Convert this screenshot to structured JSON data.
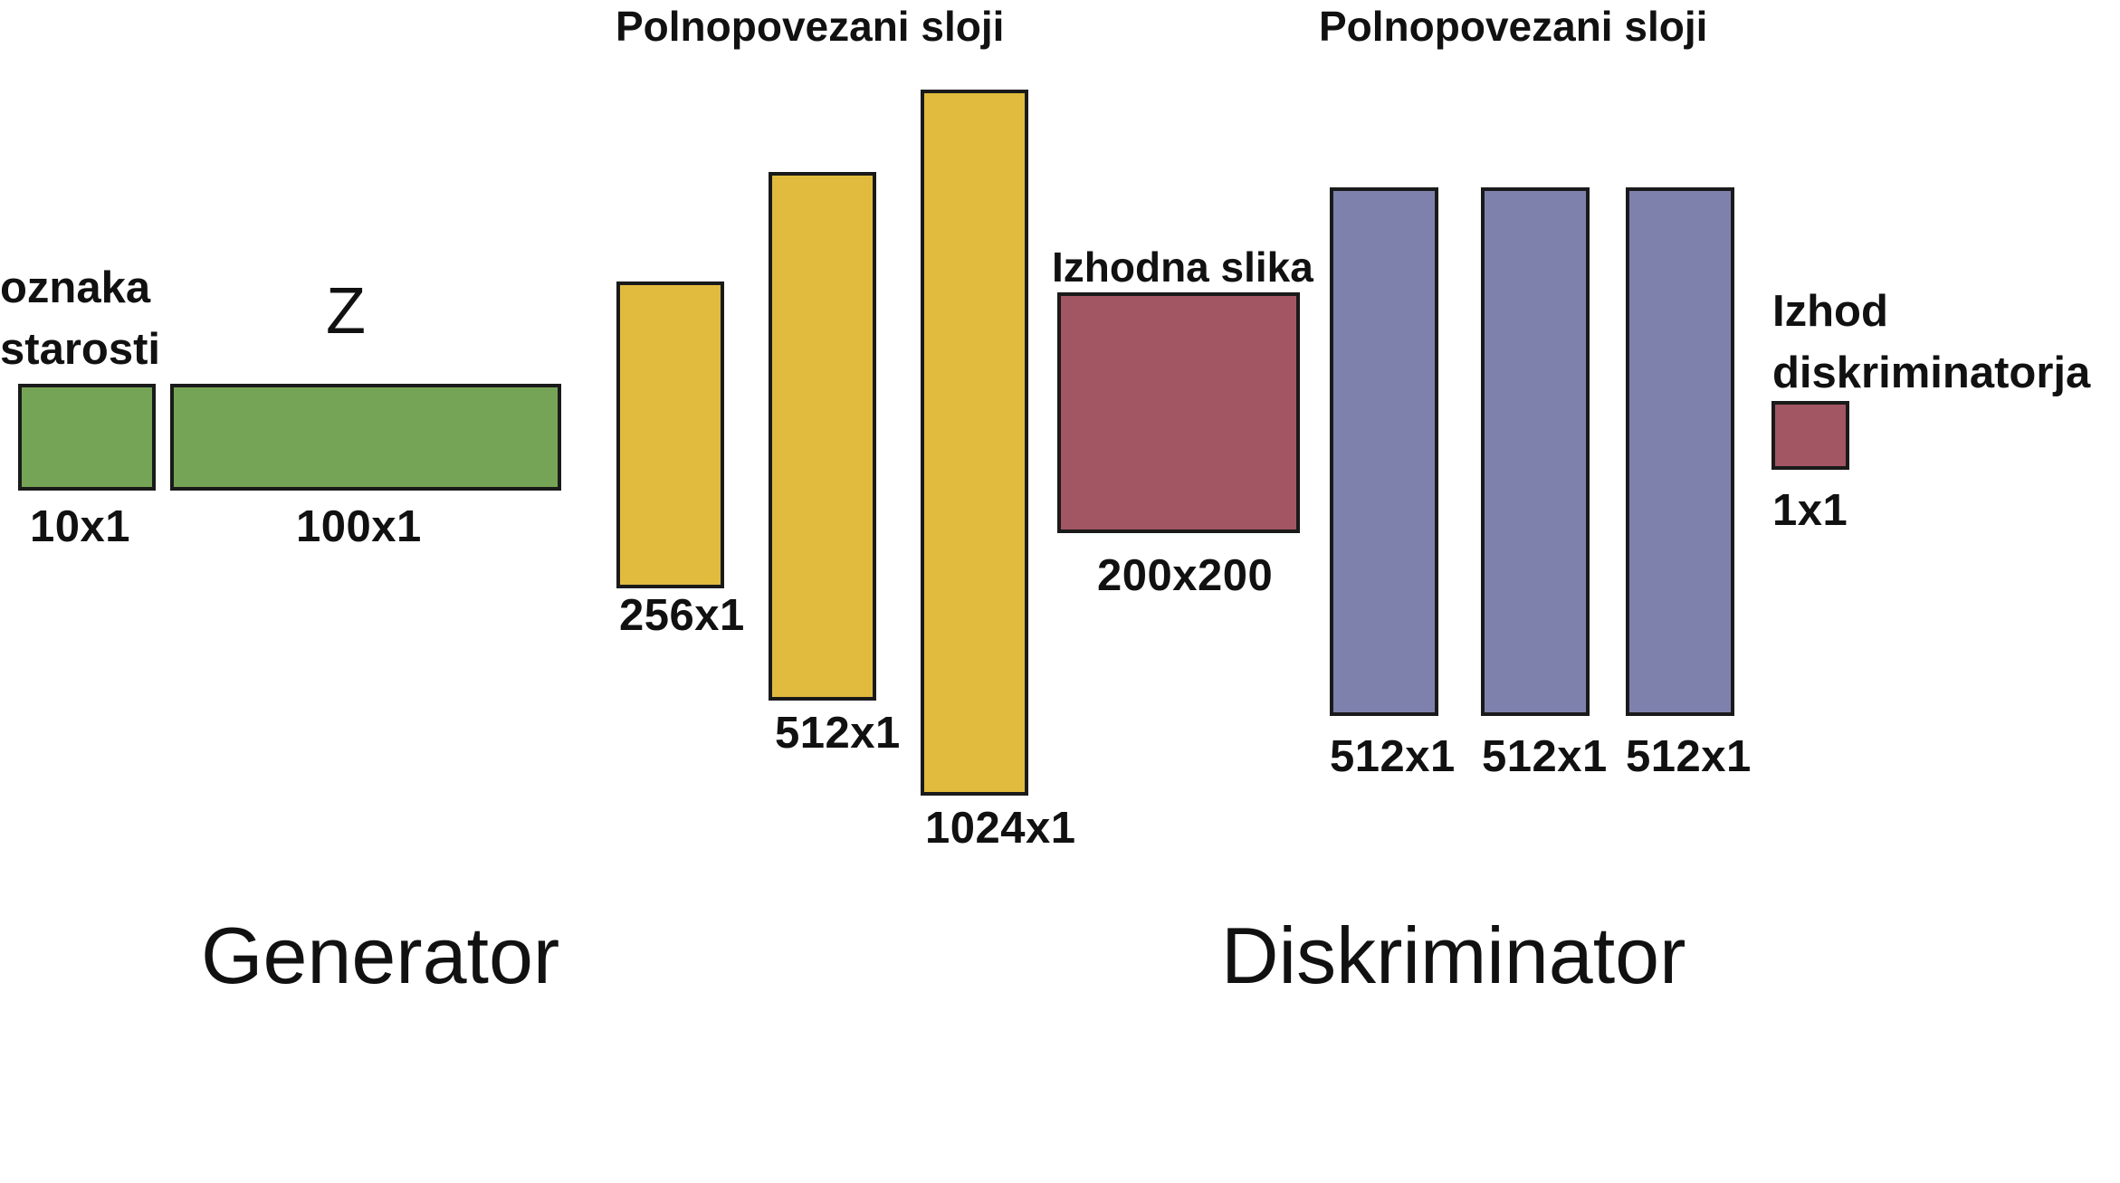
{
  "headers": {
    "generator_layers": "Polnopovezani sloji",
    "discriminator_layers": "Polnopovezani sloji"
  },
  "inputs": {
    "age_label": "oznaka\nstarosti",
    "age_dim": "10x1",
    "z_label": "Z",
    "z_dim": "100x1"
  },
  "generator_layers": [
    {
      "dim": "256x1"
    },
    {
      "dim": "512x1"
    },
    {
      "dim": "1024x1"
    }
  ],
  "output_image": {
    "label": "Izhodna slika",
    "dim": "200x200"
  },
  "discriminator_layers": [
    {
      "dim": "512x1"
    },
    {
      "dim": "512x1"
    },
    {
      "dim": "512x1"
    }
  ],
  "discriminator_output": {
    "label": "Izhod\ndiskriminatorja",
    "dim": "1x1"
  },
  "sections": {
    "generator": "Generator",
    "discriminator": "Diskriminator"
  },
  "colors": {
    "input": "#76a456",
    "generator_layer": "#e1bb3e",
    "output": "#a25562",
    "discriminator_layer": "#7f81ad"
  }
}
